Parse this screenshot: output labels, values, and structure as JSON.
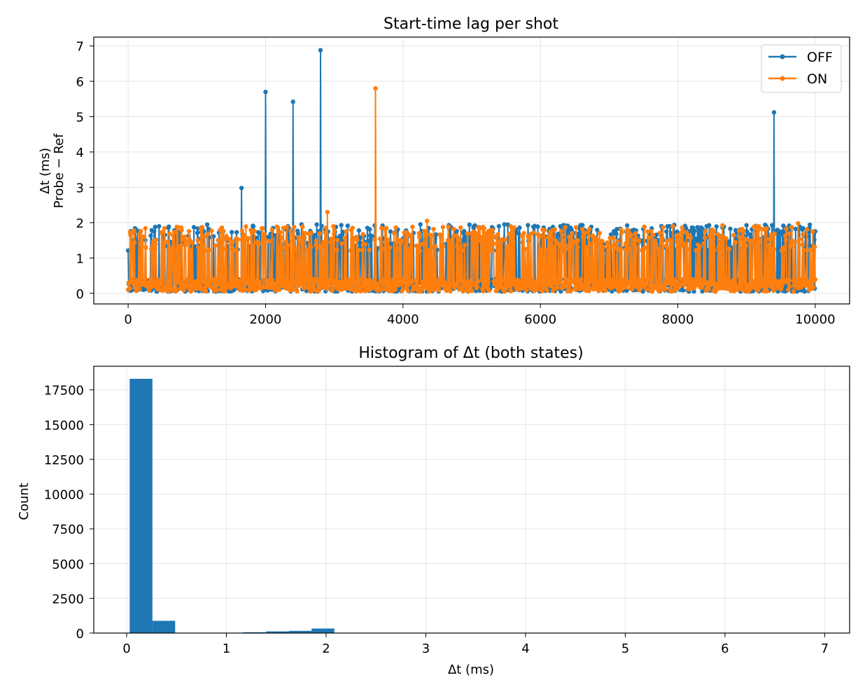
{
  "chart_data": [
    {
      "type": "line",
      "title": "Start-time lag per shot",
      "xlabel": "",
      "ylabel_lines": [
        "Δt (ms)",
        "Probe − Ref"
      ],
      "xlim": [
        -500,
        10500
      ],
      "ylim": [
        -0.3,
        7.25
      ],
      "xticks": [
        0,
        2000,
        4000,
        6000,
        8000,
        10000
      ],
      "xtick_labels": [
        "0",
        "2000",
        "4000",
        "6000",
        "8000",
        "10000"
      ],
      "yticks": [
        0,
        1,
        2,
        3,
        4,
        5,
        6,
        7
      ],
      "ytick_labels": [
        "0",
        "1",
        "2",
        "3",
        "4",
        "5",
        "6",
        "7"
      ],
      "grid": true,
      "legend_position": "top-right",
      "series": [
        {
          "name": "OFF",
          "color": "#1f77b4",
          "baseline_range": [
            0.05,
            0.4
          ],
          "spike_range": [
            1.2,
            1.95
          ],
          "spike_x_range": [
            0,
            10000
          ],
          "outliers": [
            [
              1650,
              2.98
            ],
            [
              2000,
              5.7
            ],
            [
              2400,
              5.42
            ],
            [
              2800,
              6.88
            ],
            [
              9400,
              5.12
            ]
          ]
        },
        {
          "name": "ON",
          "color": "#ff7f0e",
          "baseline_range": [
            0.05,
            0.4
          ],
          "spike_range": [
            1.2,
            1.9
          ],
          "spike_x_range": [
            0,
            10000
          ],
          "outliers": [
            [
              2900,
              2.3
            ],
            [
              3600,
              5.8
            ],
            [
              4350,
              2.05
            ],
            [
              8650,
              1.92
            ],
            [
              9750,
              1.98
            ]
          ]
        }
      ]
    },
    {
      "type": "bar",
      "title": "Histogram of Δt (both states)",
      "xlabel": "Δt (ms)",
      "ylabel": "Count",
      "xlim": [
        -0.33,
        7.25
      ],
      "ylim": [
        0,
        19200
      ],
      "xticks": [
        0,
        1,
        2,
        3,
        4,
        5,
        6,
        7
      ],
      "xtick_labels": [
        "0",
        "1",
        "2",
        "3",
        "4",
        "5",
        "6",
        "7"
      ],
      "yticks": [
        0,
        2500,
        5000,
        7500,
        10000,
        12500,
        15000,
        17500
      ],
      "ytick_labels": [
        "0",
        "2500",
        "5000",
        "7500",
        "10000",
        "12500",
        "15000",
        "17500"
      ],
      "grid": true,
      "color": "#1f77b4",
      "bin_width": 0.228,
      "bin_start": 0.03,
      "counts": [
        18300,
        880,
        0,
        0,
        0,
        60,
        120,
        160,
        330,
        0,
        0,
        0,
        0,
        0,
        0,
        0,
        0,
        0,
        0,
        0,
        0,
        0,
        0,
        0,
        0,
        0,
        0,
        0,
        0,
        0
      ]
    }
  ]
}
